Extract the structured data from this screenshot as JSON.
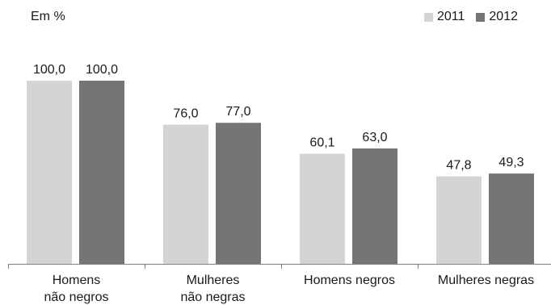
{
  "chart_data": {
    "type": "bar",
    "unit_label": "Em %",
    "categories": [
      [
        "Homens",
        "não negros"
      ],
      [
        "Mulheres",
        "não negras"
      ],
      [
        "Homens negros"
      ],
      [
        "Mulheres negras"
      ]
    ],
    "series": [
      {
        "name": "2011",
        "color": "#d4d4d4",
        "values": [
          100.0,
          76.0,
          60.1,
          47.8
        ]
      },
      {
        "name": "2012",
        "color": "#737577",
        "values": [
          100.0,
          77.0,
          63.0,
          49.3
        ]
      }
    ],
    "data_labels": [
      [
        "100,0",
        "76,0",
        "60,1",
        "47,8"
      ],
      [
        "100,0",
        "77,0",
        "63,0",
        "49,3"
      ]
    ],
    "ylim": [
      0,
      100
    ],
    "grid": false,
    "legend_position": "top-right"
  }
}
